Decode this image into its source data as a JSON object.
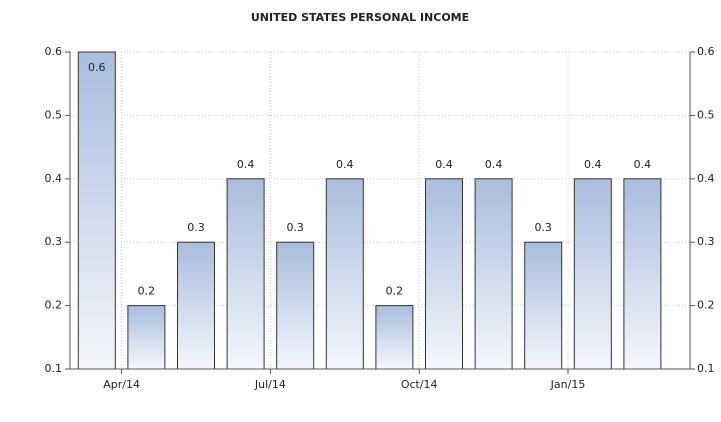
{
  "chart_data": {
    "type": "bar",
    "title": "UNITED STATES PERSONAL INCOME",
    "categories": [
      null,
      "Apr/14",
      null,
      null,
      "Jul/14",
      null,
      null,
      "Oct/14",
      null,
      null,
      "Jan/15",
      null
    ],
    "values": [
      0.6,
      0.2,
      0.3,
      0.4,
      0.3,
      0.4,
      0.2,
      0.4,
      0.4,
      0.3,
      0.4,
      0.4
    ],
    "color": "#a9bddd",
    "ylim": [
      0.1,
      0.6
    ],
    "yticks": [
      0.1,
      0.2,
      0.3,
      0.4,
      0.5,
      0.6
    ],
    "y2lim": [
      0.1,
      0.6
    ],
    "y2ticks": [
      0.1,
      0.2,
      0.3,
      0.4,
      0.5,
      0.6
    ],
    "grid": true
  }
}
